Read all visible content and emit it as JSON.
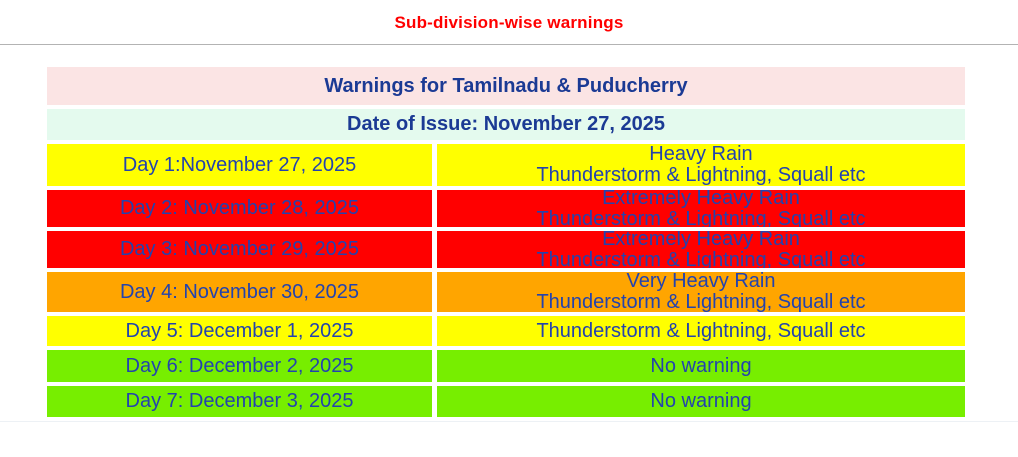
{
  "page": {
    "title": "Sub-division-wise warnings"
  },
  "colors": {
    "title_text": "#ff0000",
    "header_text": "#1b3a94",
    "row_text": "#2343ae",
    "header_bg": "#fbe4e4",
    "date_bg": "#e4faee",
    "yellow": "#ffff00",
    "red": "#ff0000",
    "orange": "#ffa500",
    "green": "#77ee00"
  },
  "table": {
    "title": "Warnings for Tamilnadu & Puducherry",
    "date_of_issue": "Date of Issue: November 27, 2025",
    "rows": [
      {
        "day": "Day 1:November 27, 2025",
        "warning_line1": "Heavy Rain",
        "warning_line2": "Thunderstorm & Lightning, Squall etc",
        "severity_bg": "#ffff00"
      },
      {
        "day": "Day 2: November 28, 2025",
        "warning_line1": "Extremely Heavy Rain",
        "warning_line2": "Thunderstorm & Lightning, Squall etc",
        "severity_bg": "#ff0000"
      },
      {
        "day": "Day 3: November 29, 2025",
        "warning_line1": "Extremely Heavy Rain",
        "warning_line2": "Thunderstorm & Lightning, Squall etc",
        "severity_bg": "#ff0000"
      },
      {
        "day": "Day 4: November 30, 2025",
        "warning_line1": "Very Heavy Rain",
        "warning_line2": "Thunderstorm & Lightning, Squall etc",
        "severity_bg": "#ffa500"
      },
      {
        "day": "Day 5: December 1, 2025",
        "warning_line1": "",
        "warning_line2": "Thunderstorm & Lightning, Squall etc",
        "severity_bg": "#ffff00"
      },
      {
        "day": "Day 6: December 2, 2025",
        "warning_line1": "",
        "warning_line2": "No warning",
        "severity_bg": "#77ee00"
      },
      {
        "day": "Day 7: December 3, 2025",
        "warning_line1": "",
        "warning_line2": "No warning",
        "severity_bg": "#77ee00"
      }
    ]
  }
}
